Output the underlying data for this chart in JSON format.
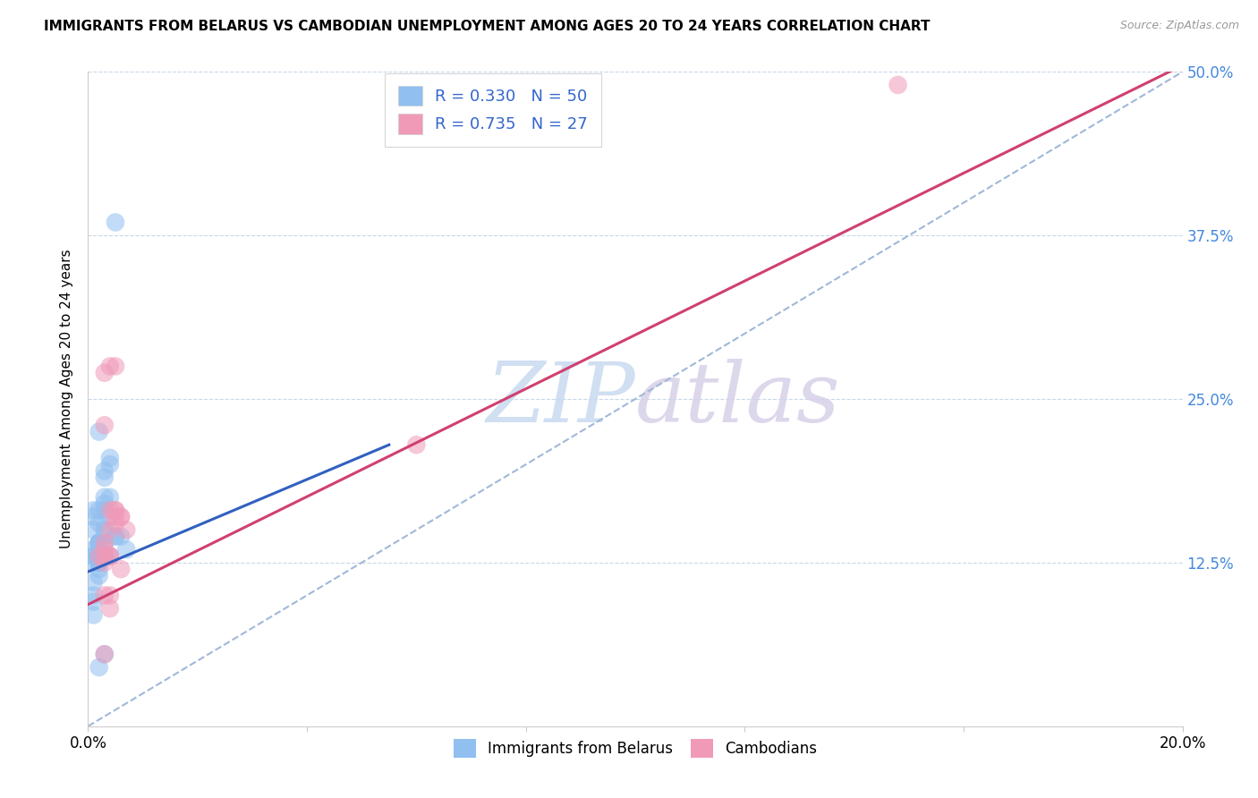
{
  "title": "IMMIGRANTS FROM BELARUS VS CAMBODIAN UNEMPLOYMENT AMONG AGES 20 TO 24 YEARS CORRELATION CHART",
  "source": "Source: ZipAtlas.com",
  "ylabel": "Unemployment Among Ages 20 to 24 years",
  "x_ticks": [
    0.0,
    0.04,
    0.08,
    0.12,
    0.16,
    0.2
  ],
  "y_ticks": [
    0.0,
    0.125,
    0.25,
    0.375,
    0.5
  ],
  "xlim": [
    0.0,
    0.2
  ],
  "ylim": [
    0.0,
    0.5
  ],
  "watermark_zip": "ZIP",
  "watermark_atlas": "atlas",
  "legend_labels_bottom": [
    "Immigrants from Belarus",
    "Cambodians"
  ],
  "blue_color": "#90bff0",
  "pink_color": "#f09ab8",
  "blue_line_color": "#3060c0",
  "pink_line_color": "#d04070",
  "dashed_line_color": "#a0b8d8",
  "belarus_x": [
    0.001,
    0.002,
    0.001,
    0.003,
    0.002,
    0.001,
    0.002,
    0.001,
    0.004,
    0.003,
    0.002,
    0.001,
    0.003,
    0.002,
    0.001,
    0.002,
    0.003,
    0.004,
    0.002,
    0.003,
    0.005,
    0.002,
    0.001,
    0.001,
    0.003,
    0.002,
    0.003,
    0.002,
    0.004,
    0.002,
    0.001,
    0.003,
    0.001,
    0.002,
    0.003,
    0.002,
    0.004,
    0.002,
    0.003,
    0.002,
    0.006,
    0.005,
    0.004,
    0.002,
    0.001,
    0.003,
    0.002,
    0.002,
    0.007,
    0.005
  ],
  "belarus_y": [
    0.135,
    0.14,
    0.125,
    0.15,
    0.14,
    0.13,
    0.115,
    0.16,
    0.2,
    0.175,
    0.165,
    0.165,
    0.19,
    0.155,
    0.15,
    0.14,
    0.165,
    0.205,
    0.13,
    0.17,
    0.385,
    0.225,
    0.13,
    0.1,
    0.13,
    0.14,
    0.15,
    0.125,
    0.175,
    0.135,
    0.11,
    0.13,
    0.095,
    0.125,
    0.14,
    0.13,
    0.16,
    0.12,
    0.195,
    0.13,
    0.145,
    0.145,
    0.13,
    0.125,
    0.085,
    0.055,
    0.045,
    0.13,
    0.135,
    0.145
  ],
  "cambodian_x": [
    0.002,
    0.003,
    0.004,
    0.003,
    0.005,
    0.003,
    0.004,
    0.005,
    0.003,
    0.006,
    0.004,
    0.005,
    0.006,
    0.007,
    0.004,
    0.003,
    0.005,
    0.006,
    0.004,
    0.004,
    0.003,
    0.005,
    0.004,
    0.003,
    0.003,
    0.148,
    0.06
  ],
  "cambodian_y": [
    0.13,
    0.14,
    0.275,
    0.27,
    0.275,
    0.23,
    0.165,
    0.165,
    0.125,
    0.16,
    0.13,
    0.165,
    0.16,
    0.15,
    0.1,
    0.1,
    0.16,
    0.12,
    0.13,
    0.09,
    0.13,
    0.155,
    0.15,
    0.135,
    0.055,
    0.49,
    0.215
  ],
  "blue_line_x": [
    0.0,
    0.055
  ],
  "blue_line_y": [
    0.118,
    0.215
  ],
  "pink_line_x": [
    0.0,
    0.2
  ],
  "pink_line_y": [
    0.093,
    0.505
  ],
  "dash_line_x": [
    0.0,
    0.2
  ],
  "dash_line_y": [
    0.0,
    0.5
  ]
}
